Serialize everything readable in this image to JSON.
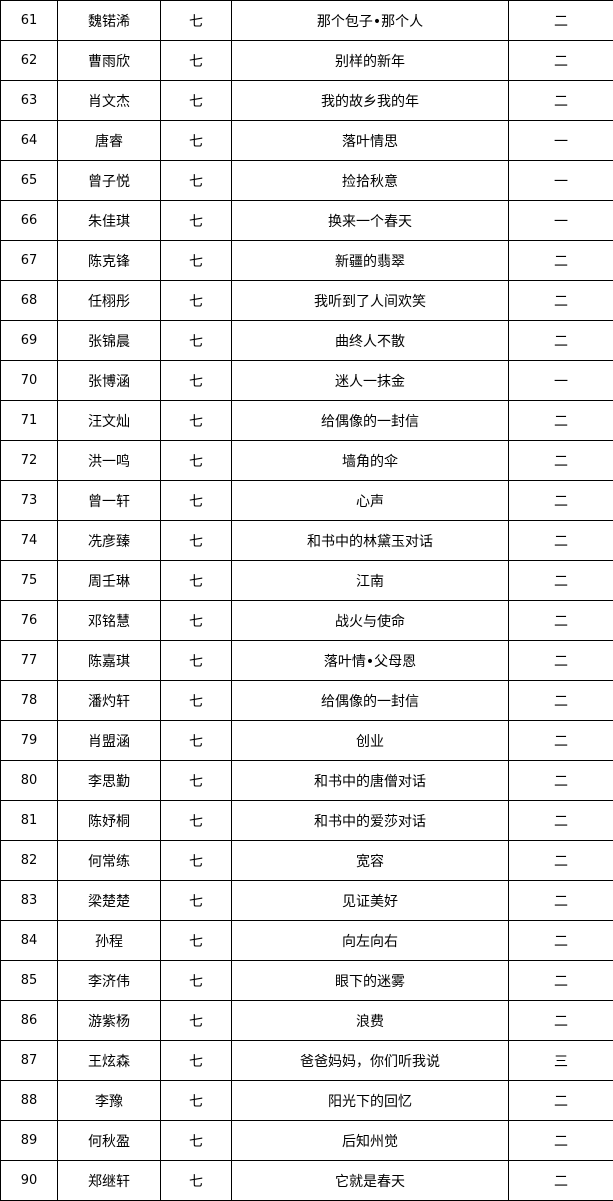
{
  "table": {
    "rows": [
      [
        61,
        "魏锘浠",
        "七",
        "那个包子•那个人",
        "二"
      ],
      [
        62,
        "曹雨欣",
        "七",
        "别样的新年",
        "二"
      ],
      [
        63,
        "肖文杰",
        "七",
        "我的故乡我的年",
        "二"
      ],
      [
        64,
        "唐睿",
        "七",
        "落叶情思",
        "一"
      ],
      [
        65,
        "曾子悦",
        "七",
        "捡拾秋意",
        "一"
      ],
      [
        66,
        "朱佳琪",
        "七",
        "换来一个春天",
        "一"
      ],
      [
        67,
        "陈克锋",
        "七",
        "新疆的翡翠",
        "二"
      ],
      [
        68,
        "任栩彤",
        "七",
        "我听到了人间欢笑",
        "二"
      ],
      [
        69,
        "张锦晨",
        "七",
        "曲终人不散",
        "二"
      ],
      [
        70,
        "张博涵",
        "七",
        "迷人一抹金",
        "一"
      ],
      [
        71,
        "汪文灿",
        "七",
        "给偶像的一封信",
        "二"
      ],
      [
        72,
        "洪一鸣",
        "七",
        "墙角的伞",
        "二"
      ],
      [
        73,
        "曾一轩",
        "七",
        "心声",
        "二"
      ],
      [
        74,
        "冼彦臻",
        "七",
        "和书中的林黛玉对话",
        "二"
      ],
      [
        75,
        "周壬琳",
        "七",
        "江南",
        "二"
      ],
      [
        76,
        "邓铭慧",
        "七",
        "战火与使命",
        "二"
      ],
      [
        77,
        "陈嘉琪",
        "七",
        "落叶情•父母恩",
        "二"
      ],
      [
        78,
        "潘灼轩",
        "七",
        "给偶像的一封信",
        "二"
      ],
      [
        79,
        "肖盟涵",
        "七",
        "创业",
        "二"
      ],
      [
        80,
        "李思勤",
        "七",
        "和书中的唐僧对话",
        "二"
      ],
      [
        81,
        "陈妤桐",
        "七",
        "和书中的爱莎对话",
        "二"
      ],
      [
        82,
        "何常练",
        "七",
        "宽容",
        "二"
      ],
      [
        83,
        "梁楚楚",
        "七",
        "见证美好",
        "二"
      ],
      [
        84,
        "孙程",
        "七",
        "向左向右",
        "二"
      ],
      [
        85,
        "李济伟",
        "七",
        "眼下的迷雾",
        "二"
      ],
      [
        86,
        "游紫杨",
        "七",
        "浪费",
        "二"
      ],
      [
        87,
        "王炫森",
        "七",
        "爸爸妈妈，你们听我说",
        "三"
      ],
      [
        88,
        "李豫",
        "七",
        "阳光下的回忆",
        "二"
      ],
      [
        89,
        "何秋盈",
        "七",
        "后知州觉",
        "二"
      ],
      [
        90,
        "郑继轩",
        "七",
        "它就是春天",
        "二"
      ]
    ]
  }
}
